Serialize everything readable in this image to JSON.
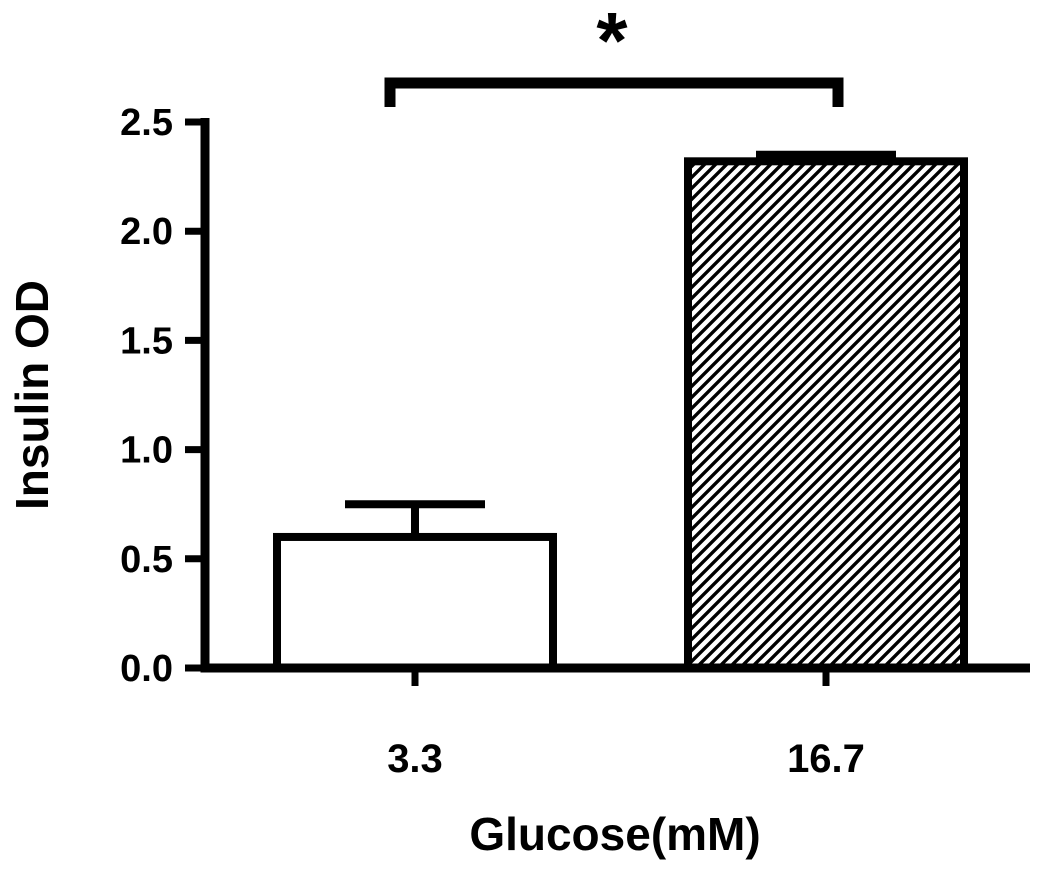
{
  "figure": {
    "background_color": "#ffffff",
    "ink_color": "#000000"
  },
  "chart_data": {
    "type": "bar",
    "title": "",
    "xlabel": "Glucose(mM)",
    "ylabel": "Insulin OD",
    "categories": [
      "3.3",
      "16.7"
    ],
    "values": [
      0.6,
      2.32
    ],
    "errors_upper": [
      0.15,
      0.03
    ],
    "ylim": [
      0,
      2.5
    ],
    "yticks": [
      0.0,
      0.5,
      1.0,
      1.5,
      2.0,
      2.5
    ],
    "ytick_labels": [
      "0.0",
      "0.5",
      "1.0",
      "1.5",
      "2.0",
      "2.5"
    ],
    "bar_styles": [
      "solid-white-outline",
      "diagonal-hatch"
    ],
    "grid": false,
    "legend": false,
    "significance": {
      "label": "*",
      "between": [
        "3.3",
        "16.7"
      ]
    }
  }
}
